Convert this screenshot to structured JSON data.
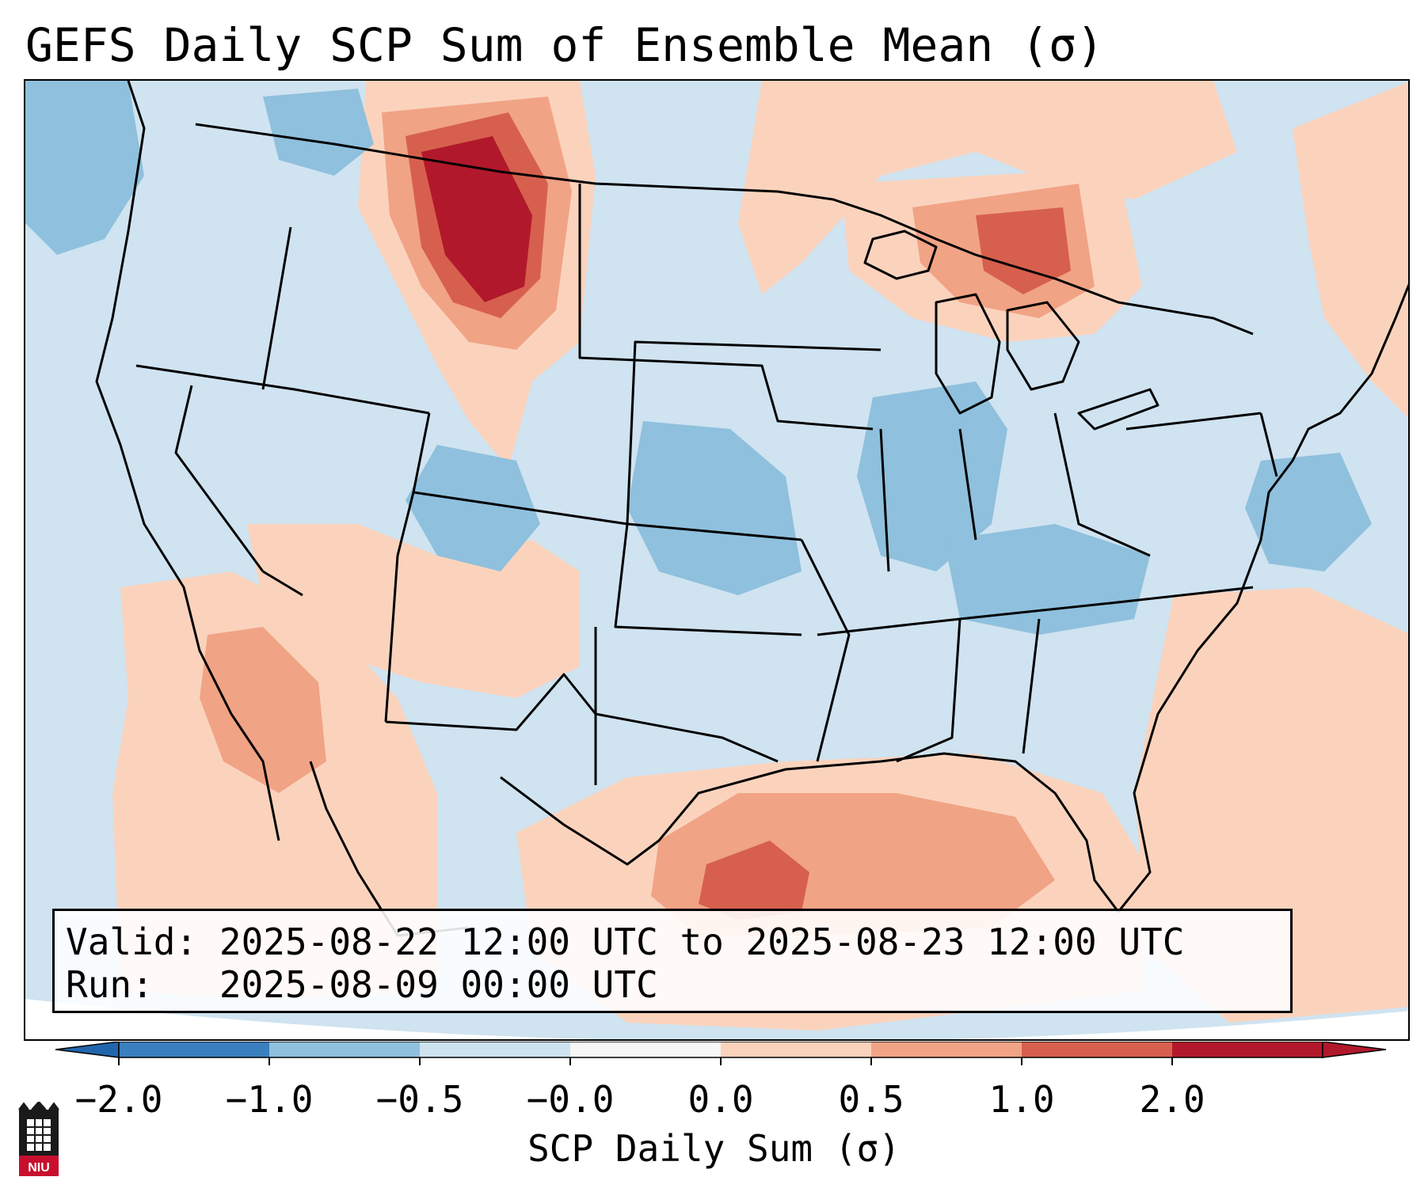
{
  "title": "GEFS Daily SCP Sum of Ensemble Mean (σ)",
  "info": {
    "valid_label": "Valid:",
    "valid_value": "2025-08-22 12:00 UTC to 2025-08-23 12:00 UTC",
    "run_label": "Run:",
    "run_value": "2025-08-09 00:00 UTC"
  },
  "colorbar": {
    "label": "SCP Daily Sum (σ)",
    "ticks": [
      "−2.0",
      "−1.0",
      "−0.5",
      "−0.0",
      "0.0",
      "0.5",
      "1.0",
      "2.0"
    ],
    "colors": [
      "#3a7fbe",
      "#8fc0dd",
      "#cde3ef",
      "#f7f7f7",
      "#fbd3bd",
      "#f1a385",
      "#d6604d",
      "#b2182b"
    ],
    "under_color": "#2166ac",
    "over_color": "#b2182b"
  },
  "map": {
    "background_color": "#cfe3f0",
    "region": "CONUS",
    "anomaly_areas": [
      {
        "name": "northern-montana",
        "category": 2.0
      },
      {
        "name": "upper-michigan-ontario",
        "category": 1.0
      },
      {
        "name": "gulf-of-mexico",
        "category": 1.0
      },
      {
        "name": "mexico-west",
        "category": 0.5
      },
      {
        "name": "southwest-us",
        "category": 0.5
      },
      {
        "name": "east-coast-atlantic",
        "category": 0.5
      },
      {
        "name": "midwest-negative",
        "category": -0.5
      },
      {
        "name": "colorado-negative",
        "category": -0.5
      },
      {
        "name": "mid-atlantic-offshore-negative",
        "category": -0.5
      }
    ]
  },
  "logo": {
    "text": "NIU"
  }
}
